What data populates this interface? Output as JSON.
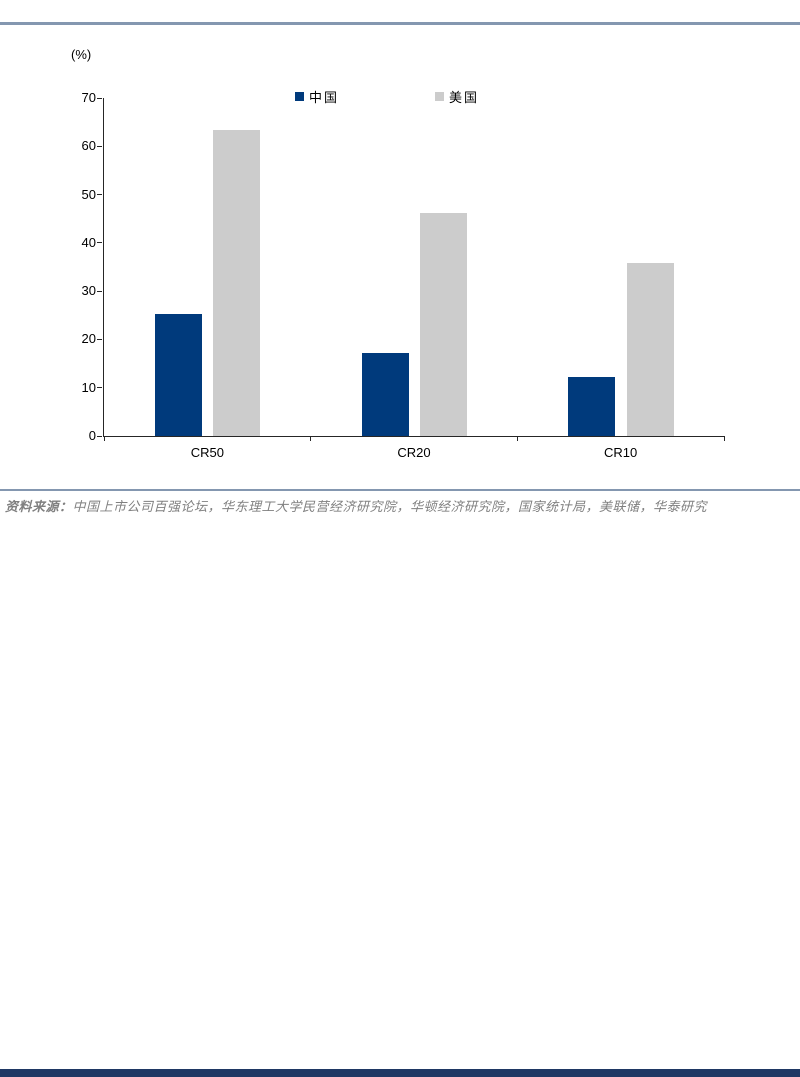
{
  "page": {
    "top_rule_color": "#8497B0",
    "mid_rule_color": "#8497B0",
    "bottom_bar_color": "#1F3864",
    "axis_color": "#262626"
  },
  "source": {
    "prefix": "资料来源：",
    "text": "中国上市公司百强论坛，华东理工大学民营经济研究院，华顿经济研究院，国家统计局，美联储，华泰研究",
    "color": "#808080"
  },
  "chart_data": {
    "type": "bar",
    "title": "",
    "unit_label": "(%)",
    "xlabel": "",
    "ylabel": "(%)",
    "categories": [
      "CR50",
      "CR20",
      "CR10"
    ],
    "series": [
      {
        "name": "中国",
        "color": "#003A7C",
        "values": [
          25.2,
          17.1,
          12.3
        ]
      },
      {
        "name": "美国",
        "color": "#CCCCCC",
        "values": [
          63.4,
          46.2,
          35.9
        ]
      }
    ],
    "ylim": [
      0,
      70
    ],
    "ytick_step": 10,
    "yticks": [
      0,
      10,
      20,
      30,
      40,
      50,
      60,
      70
    ],
    "grid": false,
    "legend_position": "top"
  }
}
